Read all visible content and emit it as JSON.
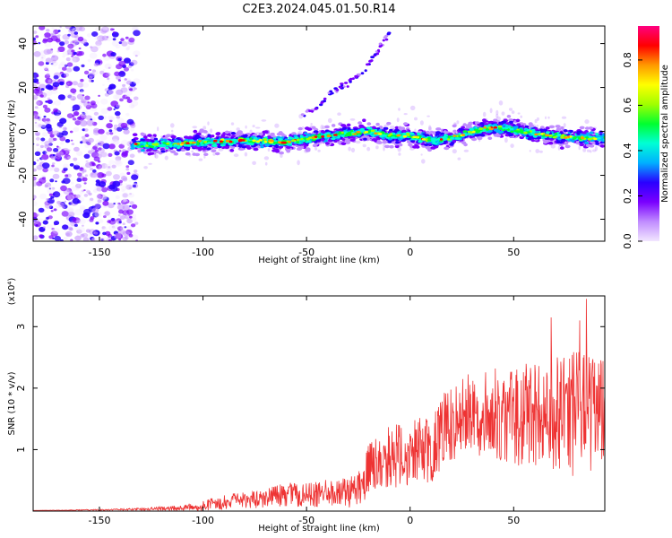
{
  "figure": {
    "title": "C2E3.2024.045.01.50.R14"
  },
  "chart_data": [
    {
      "type": "heatmap",
      "title": "C2E3.2024.045.01.50.R14",
      "xlabel": "Height of straight line (km)",
      "ylabel": "Frequency (Hz)",
      "xlim": [
        -182,
        94
      ],
      "ylim": [
        -50,
        48
      ],
      "xticks": [
        -150,
        -100,
        -50,
        0,
        50
      ],
      "yticks": [
        -40,
        -20,
        0,
        20,
        40
      ],
      "colorbar": {
        "label": "Normalized spectral amplitude",
        "range": [
          0,
          0.95
        ],
        "ticks": [
          0.0,
          0.2,
          0.4,
          0.6,
          0.8
        ],
        "colormap": [
          "#f2e6ff",
          "#c08cff",
          "#7a00ff",
          "#2a00ff",
          "#00b0ff",
          "#00ffd5",
          "#00ff30",
          "#a0ff00",
          "#ffff00",
          "#ff9900",
          "#ff0000",
          "#ff0080"
        ]
      },
      "features": {
        "noise_region_x": [
          -182,
          -132
        ],
        "main_band": {
          "x": [
            -135,
            -120,
            -100,
            -80,
            -60,
            -40,
            -20,
            -10,
            0,
            10,
            20,
            30,
            40,
            50,
            60,
            70,
            80,
            93
          ],
          "y": [
            -6,
            -6,
            -5,
            -4,
            -5,
            -2,
            0,
            -2,
            -2,
            -4,
            -3,
            0,
            2,
            1,
            -1,
            -2,
            -3,
            -3
          ]
        },
        "harmonic_streak": {
          "x": [
            -52,
            -45,
            -38,
            -30,
            -22,
            -15,
            -10
          ],
          "y": [
            8,
            10,
            18,
            22,
            28,
            38,
            45
          ]
        }
      }
    },
    {
      "type": "line",
      "title": "",
      "xlabel": "Height of straight line (km)",
      "ylabel": "SNR (10 * v/v)",
      "multiplier_label": "(x10⁴)",
      "xlim": [
        -182,
        94
      ],
      "ylim": [
        0,
        3.5
      ],
      "xticks": [
        -150,
        -100,
        -50,
        0,
        50
      ],
      "yticks": [
        1,
        2,
        3
      ],
      "series": [
        {
          "color": "#ee3333",
          "envelope_x": [
            -182,
            -150,
            -130,
            -110,
            -100,
            -90,
            -70,
            -60,
            -50,
            -40,
            -30,
            -22,
            -20,
            -10,
            0,
            5,
            10,
            15,
            20,
            30,
            40,
            50,
            60,
            70,
            80,
            85,
            93
          ],
          "envelope_mean": [
            0.01,
            0.02,
            0.03,
            0.05,
            0.08,
            0.15,
            0.2,
            0.28,
            0.25,
            0.3,
            0.3,
            0.5,
            0.7,
            0.9,
            0.9,
            1.0,
            1.0,
            1.3,
            1.4,
            1.6,
            1.6,
            1.55,
            1.6,
            1.5,
            1.55,
            1.6,
            1.6
          ],
          "envelope_spread": [
            0.0,
            0.01,
            0.02,
            0.05,
            0.08,
            0.12,
            0.15,
            0.2,
            0.2,
            0.22,
            0.25,
            0.35,
            0.4,
            0.5,
            0.55,
            0.55,
            0.6,
            0.6,
            0.6,
            0.7,
            0.75,
            0.8,
            0.9,
            1.0,
            1.1,
            1.0,
            0.9
          ],
          "peaks": [
            {
              "x": 85,
              "y": 3.45
            },
            {
              "x": 82,
              "y": 3.1
            },
            {
              "x": 68,
              "y": 3.15
            }
          ]
        }
      ]
    }
  ]
}
